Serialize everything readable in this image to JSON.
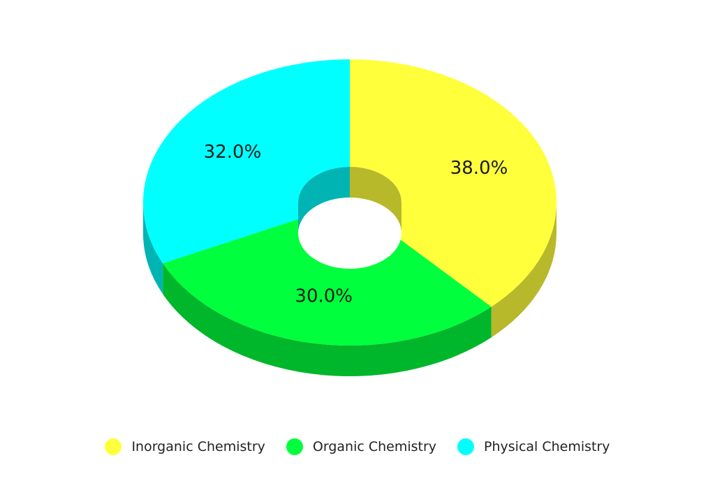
{
  "chart_data": {
    "type": "pie",
    "variant": "3d-donut",
    "categories": [
      "Inorganic Chemistry",
      "Organic Chemistry",
      "Physical Chemistry"
    ],
    "values": [
      38.0,
      30.0,
      32.0
    ],
    "data_labels": [
      "38.0%",
      "30.0%",
      "32.0%"
    ],
    "colors": [
      "#ffff3c",
      "#00ff3c",
      "#00ffff"
    ],
    "side_colors": [
      "#b8b82b",
      "#00b62b",
      "#00b4b4"
    ],
    "legend_position": "bottom-center"
  }
}
